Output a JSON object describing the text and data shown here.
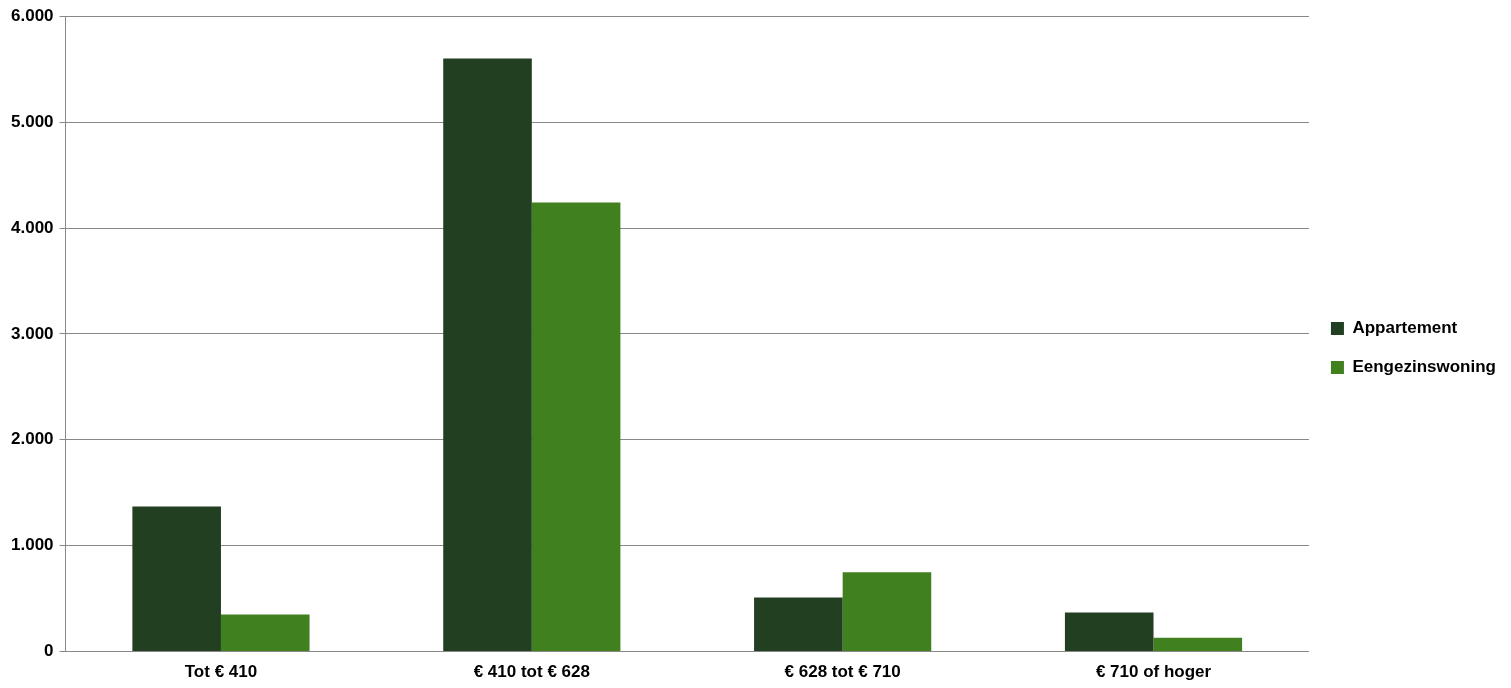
{
  "chart_data": {
    "type": "bar",
    "categories": [
      "Tot € 410",
      "€ 410 tot € 628",
      "€ 628 tot € 710",
      "€ 710 of hoger"
    ],
    "series": [
      {
        "name": "Appartement",
        "color": "#224021",
        "values": [
          1370,
          5600,
          510,
          370
        ]
      },
      {
        "name": "Eengezinswoning",
        "color": "#40801f",
        "values": [
          350,
          4240,
          750,
          130
        ]
      }
    ],
    "ylim": [
      0,
      6000
    ],
    "yticks": [
      {
        "value": 0,
        "label": "0"
      },
      {
        "value": 1000,
        "label": "1.000"
      },
      {
        "value": 2000,
        "label": "2.000"
      },
      {
        "value": 3000,
        "label": "3.000"
      },
      {
        "value": 4000,
        "label": "4.000"
      },
      {
        "value": 5000,
        "label": "5.000"
      },
      {
        "value": 6000,
        "label": "6.000"
      }
    ],
    "grid": "y",
    "legend": "right"
  }
}
